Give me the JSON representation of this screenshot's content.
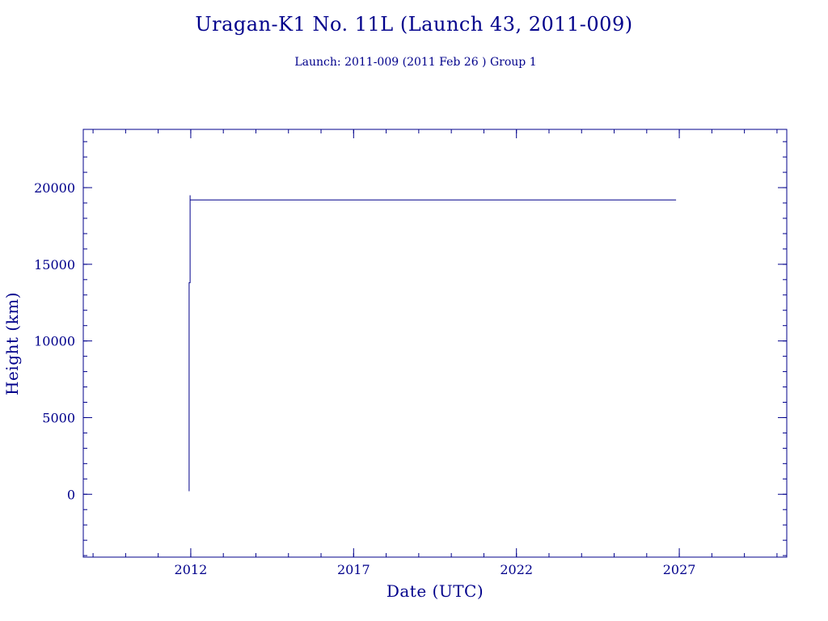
{
  "chart_data": {
    "type": "line",
    "title": "Uragan-K1 No. 11L (Launch 43, 2011-009)",
    "subtitle": "Launch: 2011-009  (2011 Feb 26 )  Group 1",
    "xlabel": "Date (UTC)",
    "ylabel": "Height (km)",
    "xlim": [
      2008.7,
      2030.3
    ],
    "ylim": [
      -4100,
      23800
    ],
    "x_ticks": [
      2012,
      2017,
      2022,
      2027
    ],
    "y_ticks": [
      0,
      5000,
      10000,
      15000,
      20000
    ],
    "x_minor_step": 1,
    "y_minor_step": 1000,
    "grid": false,
    "color": "#00008b",
    "series": [
      {
        "points": [
          [
            2011.95,
            200
          ],
          [
            2011.95,
            13800
          ],
          [
            2011.98,
            13800
          ],
          [
            2011.98,
            19500
          ],
          [
            2011.98,
            19200
          ],
          [
            2026.9,
            19200
          ]
        ]
      }
    ]
  }
}
